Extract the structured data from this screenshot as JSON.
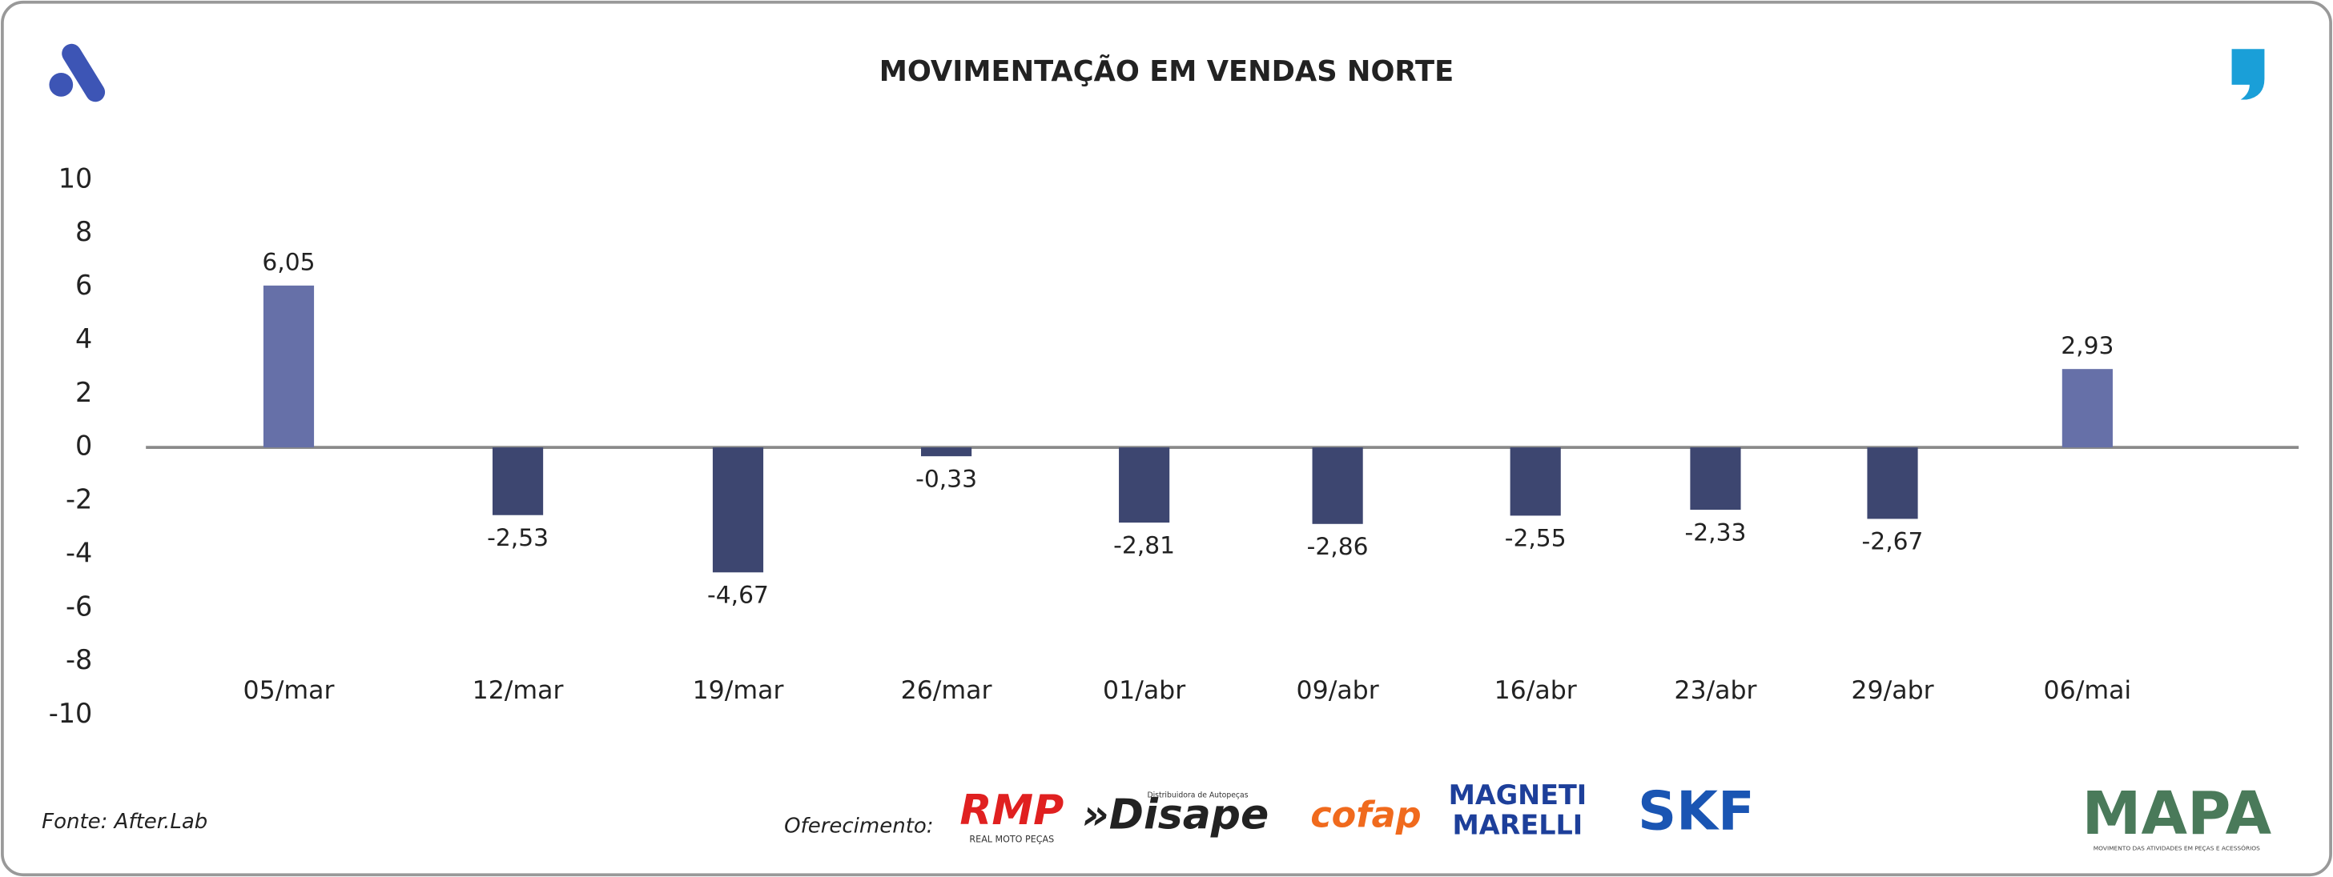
{
  "chart_data": {
    "type": "bar",
    "title": "MOVIMENTAÇÃO EM VENDAS NORTE",
    "categories": [
      "05/mar",
      "12/mar",
      "19/mar",
      "26/mar",
      "01/abr",
      "09/abr",
      "16/abr",
      "23/abr",
      "29/abr",
      "06/mai"
    ],
    "values": [
      6.05,
      -2.53,
      -4.67,
      -0.33,
      -2.81,
      -2.86,
      -2.55,
      -2.33,
      -2.67,
      2.93
    ],
    "value_labels": [
      "6,05",
      "-2,53",
      "-4,67",
      "-0,33",
      "-2,81",
      "-2,86",
      "-2,55",
      "-2,33",
      "-2,67",
      "2,93"
    ],
    "positive_color": "#6670a8",
    "negative_color": "#3d4670",
    "ylim": [
      -10,
      10
    ],
    "yticks": [
      -10,
      -8,
      -6,
      -4,
      -2,
      0,
      2,
      4,
      6,
      8,
      10
    ],
    "grid": false
  },
  "footer": {
    "source": "Fonte: After.Lab",
    "sponsor_label": "Oferecimento:",
    "sponsors": [
      "RMP",
      "REAL MOTO PEÇAS",
      "»Disape",
      "Distribuidora de Autopeças",
      "cofap",
      "MAGNETI",
      "MARELLI",
      "SKF"
    ],
    "brand": "MAPA",
    "brand_tagline": "MOVIMENTO DAS ATIVIDADES EM PEÇAS E ACESSÓRIOS"
  }
}
